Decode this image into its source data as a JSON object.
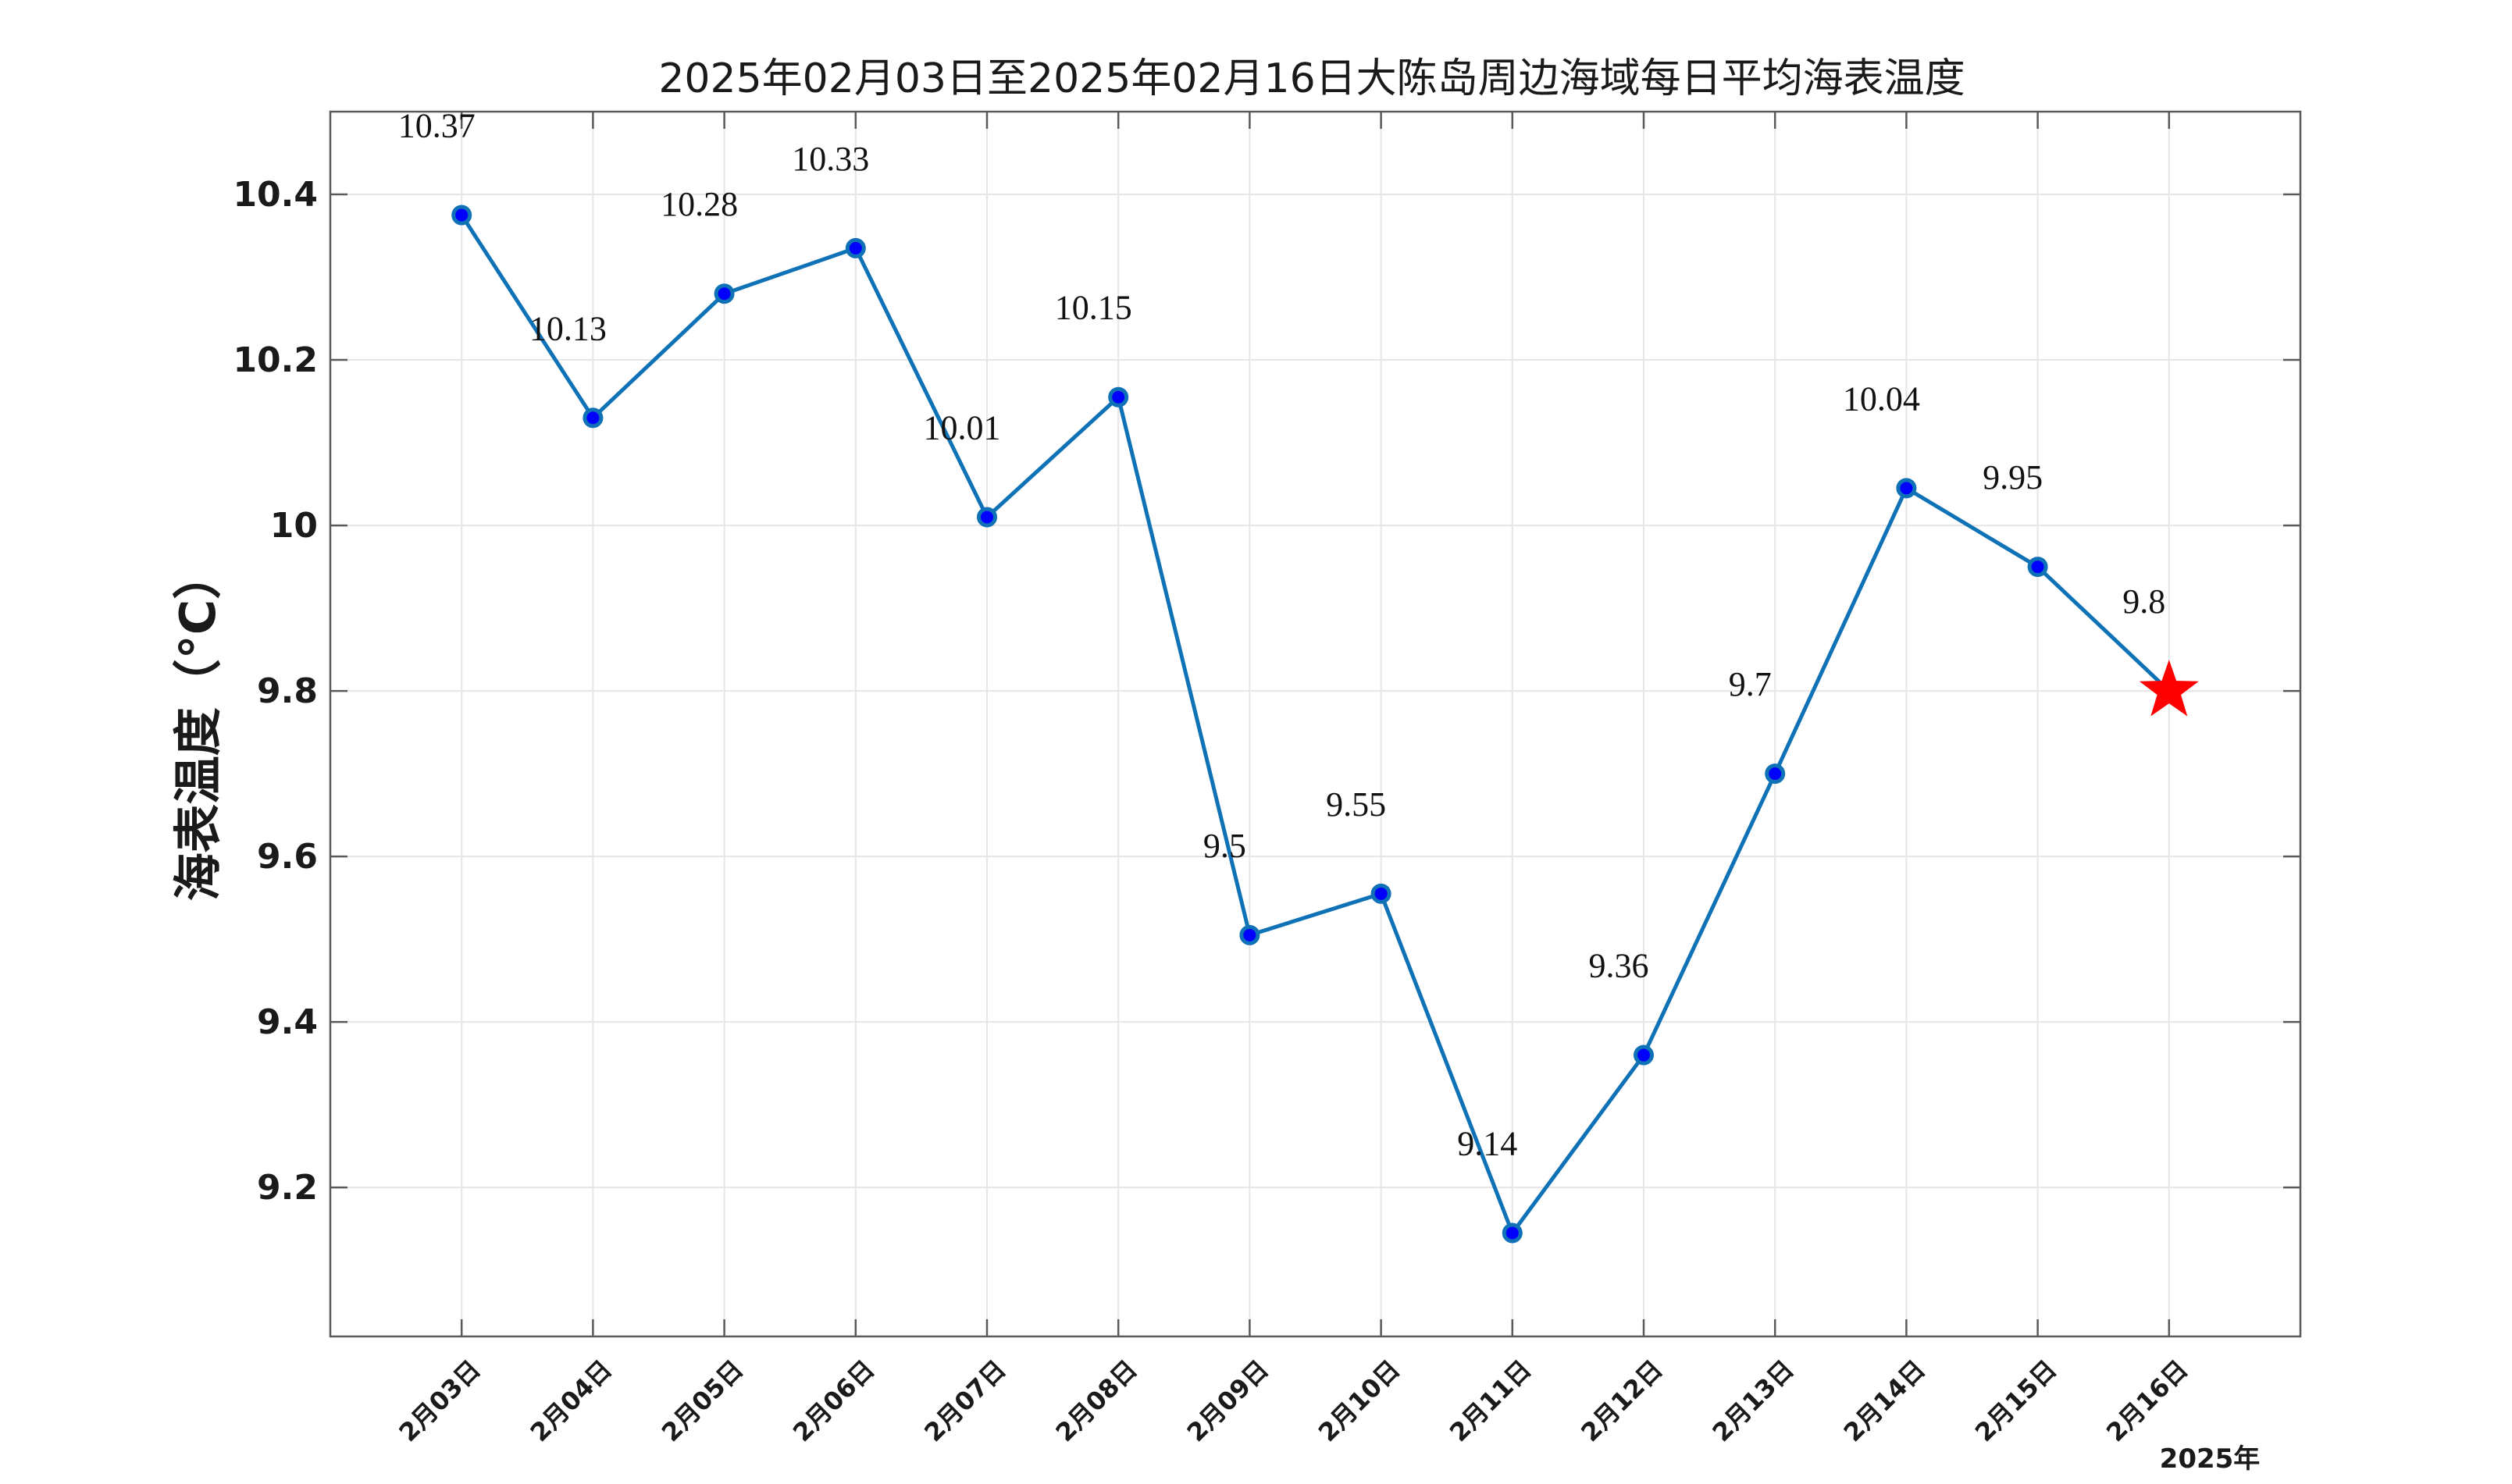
{
  "chart_data": {
    "type": "line",
    "title": "2025年02月03日至2025年02月16日大陈岛周边海域每日平均海表温度",
    "ylabel": "海表温度（°C）",
    "xlabel": "",
    "x_unit_label": "2025年",
    "categories": [
      "2月03日",
      "2月04日",
      "2月05日",
      "2月06日",
      "2月07日",
      "2月08日",
      "2月09日",
      "2月10日",
      "2月11日",
      "2月12日",
      "2月13日",
      "2月14日",
      "2月15日",
      "2月16日"
    ],
    "series": [
      {
        "values": [
          10.375,
          10.13,
          10.28,
          10.335,
          10.01,
          10.155,
          9.505,
          9.555,
          9.145,
          9.36,
          9.7,
          10.045,
          9.95,
          9.8
        ]
      }
    ],
    "data_labels": [
      "10.37",
      "10.13",
      "10.28",
      "10.33",
      "10.01",
      "10.15",
      "9.5",
      "9.55",
      "9.14",
      "9.36",
      "9.7",
      "10.04",
      "9.95",
      "9.8"
    ],
    "ylim": [
      9.02,
      10.5
    ],
    "yticks": [
      9.2,
      9.4,
      9.6,
      9.8,
      10,
      10.2,
      10.4
    ],
    "ytick_labels": [
      "9.2",
      "9.4",
      "9.6",
      "9.8",
      "10",
      "10.2",
      "10.4"
    ],
    "grid": true,
    "highlight_last_point": "star",
    "colors": {
      "line": "#0f72b6",
      "marker_fill": "#0000ff",
      "marker_edge": "#0f72b6",
      "star": "#ff0000"
    }
  }
}
